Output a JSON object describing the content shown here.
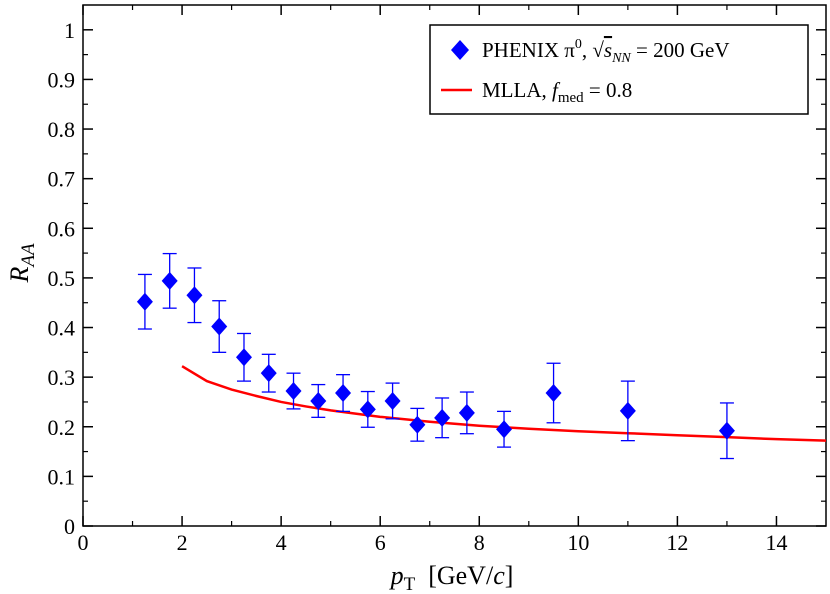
{
  "chart_data": {
    "type": "scatter",
    "xlabel": "p_T [GeV/c]",
    "xlabel_parts": {
      "var": "p",
      "sub": "T",
      "unit_open": "[GeV/",
      "unit_c": "c",
      "unit_close": "]"
    },
    "ylabel": "R_AA",
    "ylabel_parts": {
      "var": "R",
      "sub": "AA"
    },
    "xlim": [
      0,
      15
    ],
    "ylim": [
      0,
      1.05
    ],
    "x_ticks": [
      0,
      2,
      4,
      6,
      8,
      10,
      12,
      14
    ],
    "x_tick_labels": [
      "0",
      "2",
      "4",
      "6",
      "8",
      "10",
      "12",
      "14"
    ],
    "y_ticks": [
      0,
      0.1,
      0.2,
      0.3,
      0.4,
      0.5,
      0.6,
      0.7,
      0.8,
      0.9,
      1
    ],
    "y_tick_labels": [
      "0",
      "0.1",
      "0.2",
      "0.3",
      "0.4",
      "0.5",
      "0.6",
      "0.7",
      "0.8",
      "0.9",
      "1"
    ],
    "grid": false,
    "legend_position": "top-right",
    "series": [
      {
        "name": "PHENIX π0, √sNN = 200 GeV",
        "kind": "scatter-errorbars",
        "marker": "diamond",
        "color": "#0000ff",
        "x": [
          1.25,
          1.75,
          2.25,
          2.75,
          3.25,
          3.75,
          4.25,
          4.75,
          5.25,
          5.75,
          6.25,
          6.75,
          7.25,
          7.75,
          8.5,
          9.5,
          11.0,
          13.0
        ],
        "y": [
          0.452,
          0.494,
          0.465,
          0.402,
          0.34,
          0.308,
          0.272,
          0.252,
          0.268,
          0.235,
          0.252,
          0.204,
          0.218,
          0.228,
          0.195,
          0.268,
          0.232,
          0.192
        ],
        "err": [
          0.055,
          0.055,
          0.055,
          0.052,
          0.048,
          0.038,
          0.036,
          0.033,
          0.037,
          0.036,
          0.036,
          0.033,
          0.04,
          0.042,
          0.036,
          0.06,
          0.06,
          0.056
        ]
      },
      {
        "name": "MLLA, fmed = 0.8",
        "kind": "line",
        "color": "#ff0000",
        "x": [
          2.0,
          2.5,
          3.0,
          3.5,
          4.0,
          4.5,
          5.0,
          6.0,
          7.0,
          8.0,
          9.0,
          10.0,
          11.0,
          12.0,
          13.0,
          14.0,
          15.0
        ],
        "y": [
          0.322,
          0.292,
          0.275,
          0.262,
          0.25,
          0.241,
          0.233,
          0.22,
          0.21,
          0.202,
          0.196,
          0.191,
          0.187,
          0.183,
          0.179,
          0.175,
          0.172
        ]
      }
    ],
    "legend": {
      "phenix": {
        "text_a": "PHENIX π",
        "sup": "0",
        "text_b": ", √",
        "s": "s",
        "s_sub": "NN",
        "text_c": " = 200 GeV"
      },
      "mlla": {
        "text_a": "MLLA, ",
        "f": "f",
        "f_sub": "med",
        "text_b": " = 0.8"
      }
    }
  }
}
